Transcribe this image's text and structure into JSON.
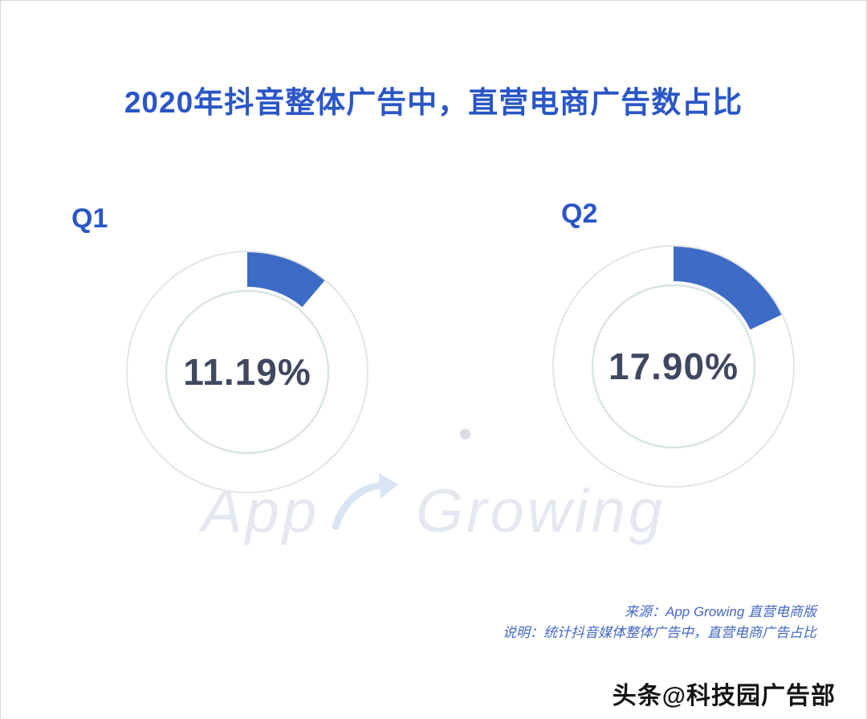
{
  "title": "2020年抖音整体广告中，直营电商广告数占比",
  "watermark": {
    "text_left": "App",
    "text_right": "Growing"
  },
  "source": {
    "line1": "来源：App Growing 直营电商版",
    "line2": "说明：统计抖音媒体整体广告中，直营电商广告占比"
  },
  "footer": "头条@科技园广告部",
  "colors": {
    "title_blue": "#2a56c6",
    "label_blue": "#2a56c6",
    "accent": "#3e6bc6",
    "outer_ring": "#e5e5e5",
    "inner_ring": "#d9e6e3",
    "value_text": "#3f4860",
    "source_blue": "#4568c4"
  },
  "chart_data": {
    "type": "donut",
    "title": "2020年抖音整体广告中，直营电商广告数占比",
    "unit": "%",
    "legend_position": "none",
    "series": [
      {
        "name": "Q1",
        "value": 11.19,
        "label": "11.19%"
      },
      {
        "name": "Q2",
        "value": 17.9,
        "label": "17.90%"
      }
    ],
    "start_angle_deg": -90,
    "direction": "clockwise",
    "accent_color": "#3e6bc6",
    "outer_ring_color": "#e5e5e5",
    "inner_ring_color": "#d9e6e3"
  }
}
